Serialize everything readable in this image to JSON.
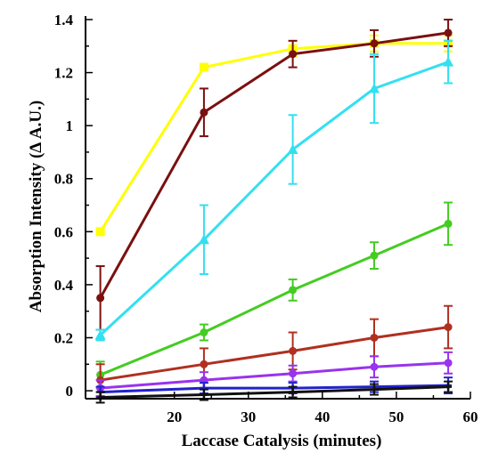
{
  "chart_data": {
    "type": "line",
    "xlabel": "Laccase Catalysis (minutes)",
    "ylabel": "Absorption Intensity (Δ A.U.)",
    "xlim": [
      8,
      60
    ],
    "ylim": [
      -0.03,
      1.4
    ],
    "x_ticks": [
      20,
      30,
      40,
      50,
      60
    ],
    "y_ticks": [
      0,
      0.2,
      0.4,
      0.6,
      0.8,
      1,
      1.2,
      1.4
    ],
    "x_tick_labels": [
      "20",
      "30",
      "40",
      "50",
      "60"
    ],
    "y_tick_labels": [
      "0",
      "0.2",
      "0.4",
      "0.6",
      "0.8",
      "1",
      "1.2",
      "1.4"
    ],
    "grid": false,
    "x": [
      10,
      24,
      36,
      47,
      57
    ],
    "series": [
      {
        "color": "#ffff00",
        "marker": "square",
        "values": [
          0.6,
          1.22,
          1.29,
          1.31,
          1.31
        ],
        "errors": [
          0.0,
          0.0,
          0.03,
          0.03,
          0.03
        ]
      },
      {
        "color": "#7a1010",
        "marker": "circle",
        "values": [
          0.35,
          1.05,
          1.27,
          1.31,
          1.35
        ],
        "errors": [
          0.12,
          0.09,
          0.05,
          0.05,
          0.05
        ]
      },
      {
        "color": "#33e0f0",
        "marker": "triangle",
        "values": [
          0.21,
          0.57,
          0.91,
          1.14,
          1.24
        ],
        "errors": [
          0.02,
          0.13,
          0.13,
          0.13,
          0.08
        ]
      },
      {
        "color": "#44cc22",
        "marker": "circle",
        "values": [
          0.06,
          0.22,
          0.38,
          0.51,
          0.63
        ],
        "errors": [
          0.05,
          0.03,
          0.04,
          0.05,
          0.08
        ]
      },
      {
        "color": "#b03020",
        "marker": "circle",
        "values": [
          0.04,
          0.1,
          0.15,
          0.2,
          0.24
        ],
        "errors": [
          0.06,
          0.06,
          0.07,
          0.07,
          0.08
        ]
      },
      {
        "color": "#9933ee",
        "marker": "circle",
        "values": [
          0.01,
          0.04,
          0.065,
          0.09,
          0.105
        ],
        "errors": [
          0.03,
          0.03,
          0.03,
          0.04,
          0.04
        ]
      },
      {
        "color": "#2222cc",
        "marker": "cross",
        "values": [
          -0.005,
          0.01,
          0.01,
          0.015,
          0.02
        ],
        "errors": [
          0.02,
          0.02,
          0.02,
          0.02,
          0.03
        ]
      },
      {
        "color": "#111111",
        "marker": "cross",
        "values": [
          -0.025,
          -0.015,
          -0.005,
          0.005,
          0.015
        ],
        "errors": [
          0.02,
          0.02,
          0.02,
          0.02,
          0.02
        ]
      }
    ]
  }
}
